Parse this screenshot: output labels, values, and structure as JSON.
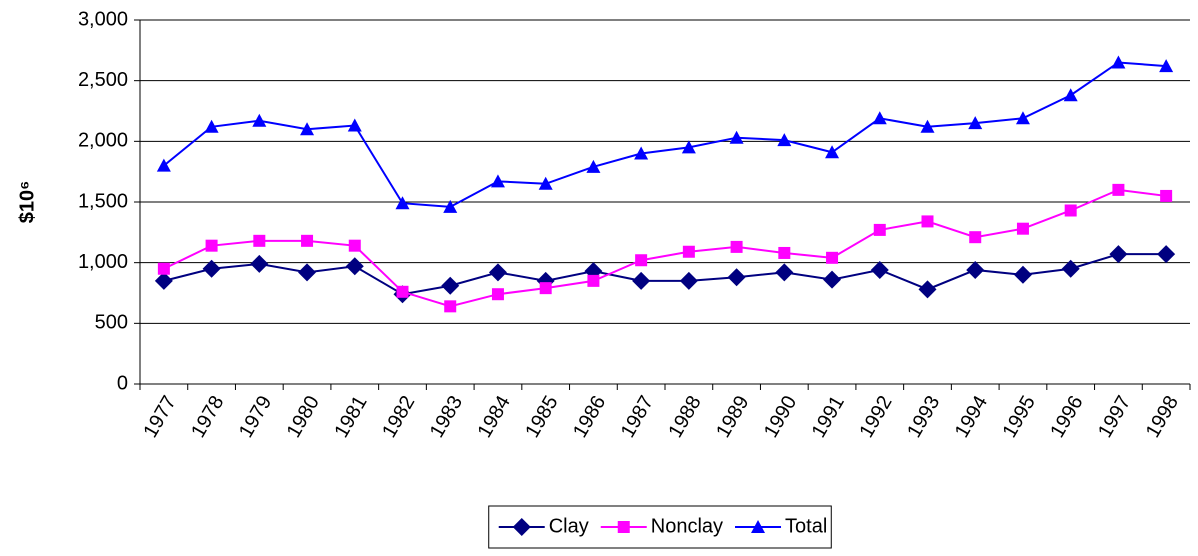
{
  "chart_data": {
    "type": "line",
    "ylabel": "$10⁶",
    "categories": [
      "1977",
      "1978",
      "1979",
      "1980",
      "1981",
      "1982",
      "1983",
      "1984",
      "1985",
      "1986",
      "1987",
      "1988",
      "1989",
      "1990",
      "1991",
      "1992",
      "1993",
      "1994",
      "1995",
      "1996",
      "1997",
      "1998"
    ],
    "series": [
      {
        "name": "Clay",
        "color": "#000080",
        "marker": "diamond",
        "values": [
          850,
          950,
          990,
          920,
          970,
          740,
          810,
          920,
          850,
          930,
          850,
          850,
          880,
          920,
          860,
          940,
          780,
          940,
          900,
          950,
          1070,
          1070
        ]
      },
      {
        "name": "Nonclay",
        "color": "#ff00ff",
        "marker": "square",
        "values": [
          950,
          1140,
          1180,
          1180,
          1140,
          760,
          640,
          740,
          790,
          850,
          1020,
          1090,
          1130,
          1080,
          1040,
          1270,
          1340,
          1210,
          1280,
          1430,
          1600,
          1550
        ]
      },
      {
        "name": "Total",
        "color": "#0000ff",
        "marker": "triangle",
        "values": [
          1800,
          2120,
          2170,
          2100,
          2130,
          1490,
          1460,
          1670,
          1650,
          1790,
          1900,
          1950,
          2030,
          2010,
          1910,
          2190,
          2120,
          2150,
          2190,
          2380,
          2650,
          2620
        ]
      }
    ],
    "ylim": [
      0,
      3000
    ],
    "yticks": [
      0,
      500,
      {
        "value": 1000,
        "label": "1,000"
      },
      {
        "value": 1500,
        "label": "1,500"
      },
      {
        "value": 2000,
        "label": "2,000"
      },
      {
        "value": 2500,
        "label": "2,500"
      },
      {
        "value": 3000,
        "label": "3,000"
      }
    ],
    "grid": true,
    "legend": "bottom"
  }
}
